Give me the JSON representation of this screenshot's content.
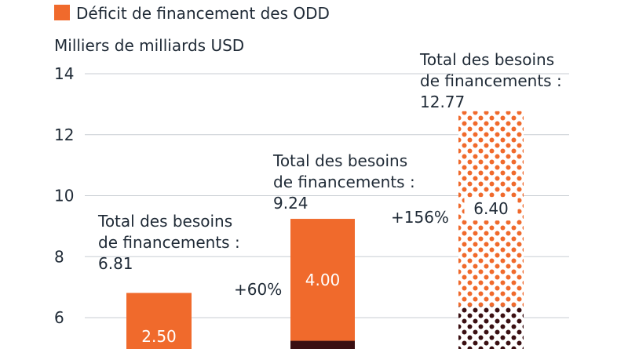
{
  "chart_data": {
    "type": "bar",
    "ylabel": "Milliers de milliards USD",
    "yticks": [
      6,
      8,
      10,
      12,
      14
    ],
    "ylim": [
      0,
      14
    ],
    "grid": true,
    "legend_position": "top-left",
    "series": [
      {
        "name": "Déficit de financement des ODD",
        "values": [
          2.5,
          4.0,
          6.4
        ],
        "color": "#f06a2c"
      }
    ],
    "other_segment_color": "#3a0f12",
    "totals": [
      6.81,
      9.24,
      12.77
    ],
    "total_label_lines": [
      "Total des besoins",
      "de financements :"
    ],
    "growth_labels": [
      "",
      "+60%",
      "+156%"
    ],
    "patterned_bar_index": 2
  }
}
